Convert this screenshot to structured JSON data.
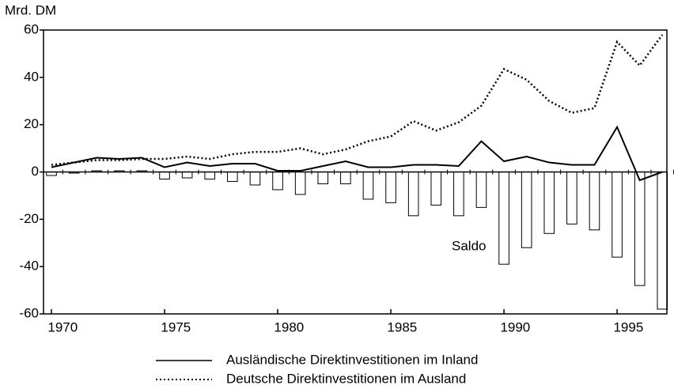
{
  "chart_data": {
    "type": "bar",
    "y_label": "Mrd. DM",
    "x": [
      1970,
      1971,
      1972,
      1973,
      1974,
      1975,
      1976,
      1977,
      1978,
      1979,
      1980,
      1981,
      1982,
      1983,
      1984,
      1985,
      1986,
      1987,
      1988,
      1989,
      1990,
      1991,
      1992,
      1993,
      1994,
      1995,
      1996,
      1997
    ],
    "series": [
      {
        "name": "Ausländische Direktinvestitionen im Inland",
        "type": "line",
        "dash": "solid",
        "color": "#000000",
        "values": [
          2,
          4,
          6,
          5.5,
          6,
          2,
          4,
          2.5,
          3.5,
          3.5,
          0.5,
          0.5,
          2.5,
          4.5,
          2,
          2,
          3,
          3,
          2.5,
          13,
          4.5,
          6.5,
          4,
          3,
          3,
          19,
          -3.5,
          0
        ]
      },
      {
        "name": "Deutsche Direktinvestitionen im Ausland",
        "type": "line",
        "dash": "dotted",
        "color": "#000000",
        "values": [
          3,
          4,
          5,
          5,
          5.5,
          5.5,
          6.5,
          5.5,
          7.5,
          8.5,
          8.5,
          10,
          7.5,
          9.5,
          13,
          15,
          21.5,
          17.5,
          21,
          28,
          43.5,
          39,
          30,
          25,
          27,
          55,
          45,
          58
        ]
      },
      {
        "name": "Saldo",
        "type": "bar",
        "color": "#ffffff",
        "values": [
          -1.5,
          -0.5,
          0.5,
          0.5,
          0.5,
          -3,
          -2.5,
          -3,
          -4,
          -5.5,
          -7.5,
          -9.5,
          -5,
          -5,
          -11.5,
          -13,
          -18.5,
          -14,
          -18.5,
          -15,
          -39,
          -32,
          -26,
          -22,
          -24.5,
          -36,
          -48,
          -58
        ]
      }
    ],
    "xlim": [
      1969.65,
      1997.2
    ],
    "xticks": [
      1970,
      1975,
      1980,
      1985,
      1990,
      1995
    ],
    "ylim": [
      -60,
      60
    ],
    "yticks": [
      -60,
      -40,
      -20,
      0,
      20,
      40,
      60
    ]
  }
}
